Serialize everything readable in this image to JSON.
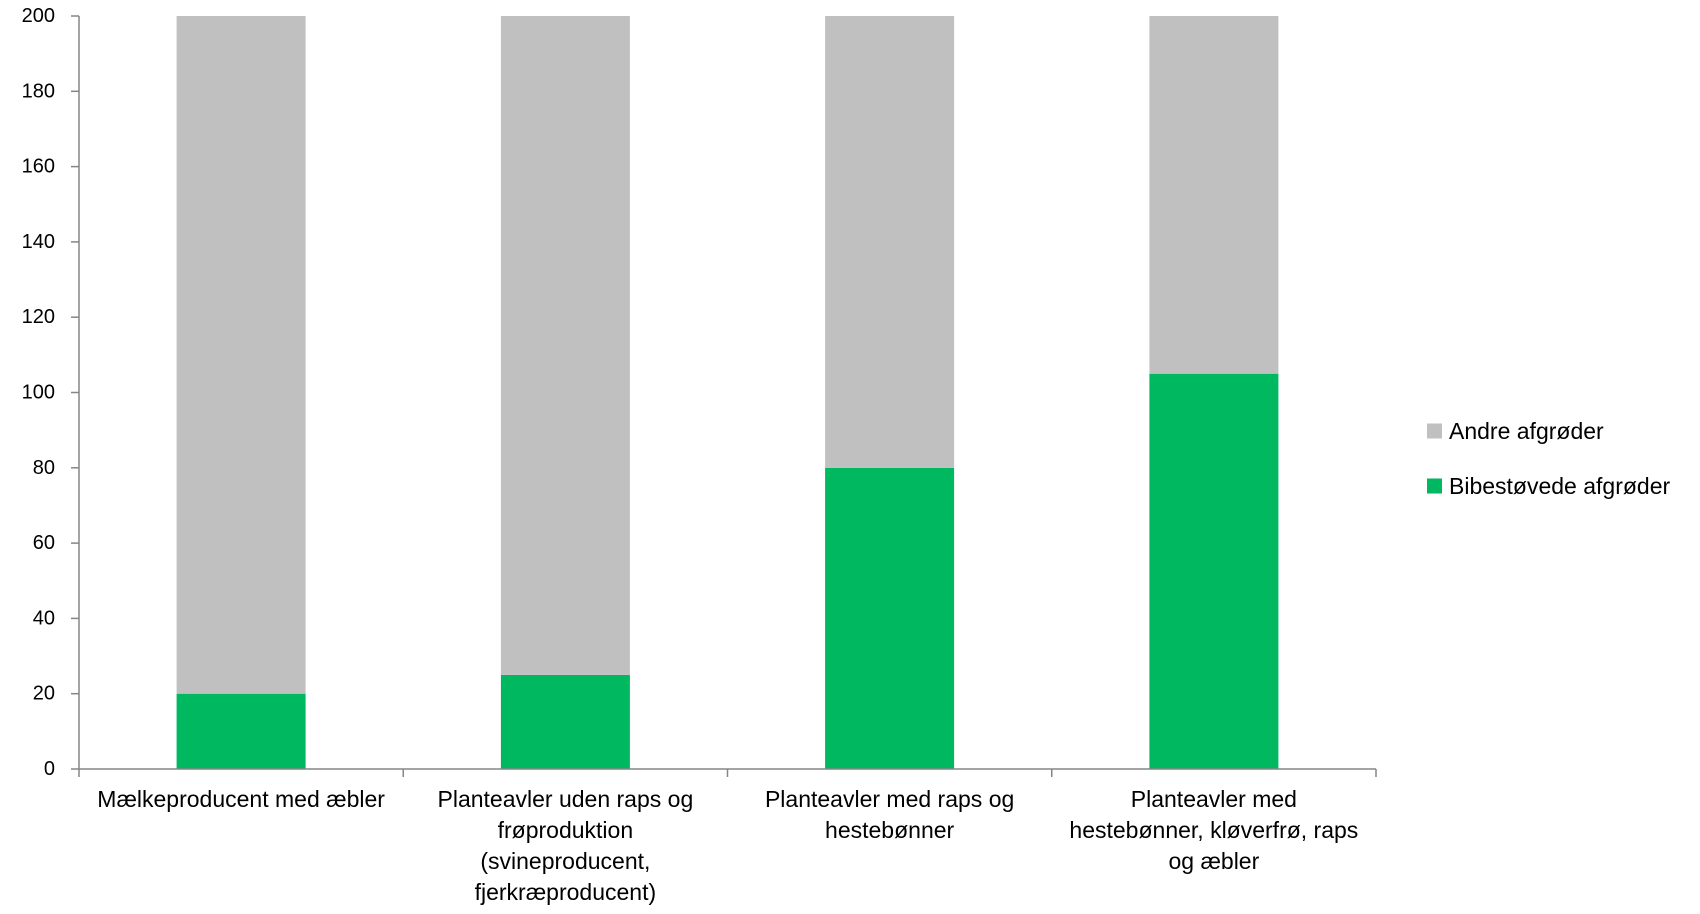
{
  "chart_data": {
    "type": "bar",
    "stacked": true,
    "title": "",
    "xlabel": "",
    "ylabel": "",
    "ylim": [
      0,
      200
    ],
    "yticks": [
      0,
      20,
      40,
      60,
      80,
      100,
      120,
      140,
      160,
      180,
      200
    ],
    "categories": [
      [
        "Mælkeproducent med æbler"
      ],
      [
        "Planteavler uden raps og",
        "frøproduktion",
        "(svineproducent,",
        "fjerkræproducent)"
      ],
      [
        "Planteavler med raps og",
        "hestebønner"
      ],
      [
        "Planteavler med",
        "hestebønner, kløverfrø, raps",
        "og æbler"
      ]
    ],
    "series": [
      {
        "name": "Bibestøvede afgrøder",
        "color": "#00b860",
        "values": [
          20,
          25,
          80,
          105
        ]
      },
      {
        "name": "Andre afgrøder",
        "color": "#c0c0c0",
        "values": [
          180,
          175,
          120,
          95
        ]
      }
    ],
    "legend": {
      "position": "right",
      "order": [
        "Andre afgrøder",
        "Bibestøvede afgrøder"
      ]
    },
    "grid": false,
    "axis_color": "#868686"
  }
}
